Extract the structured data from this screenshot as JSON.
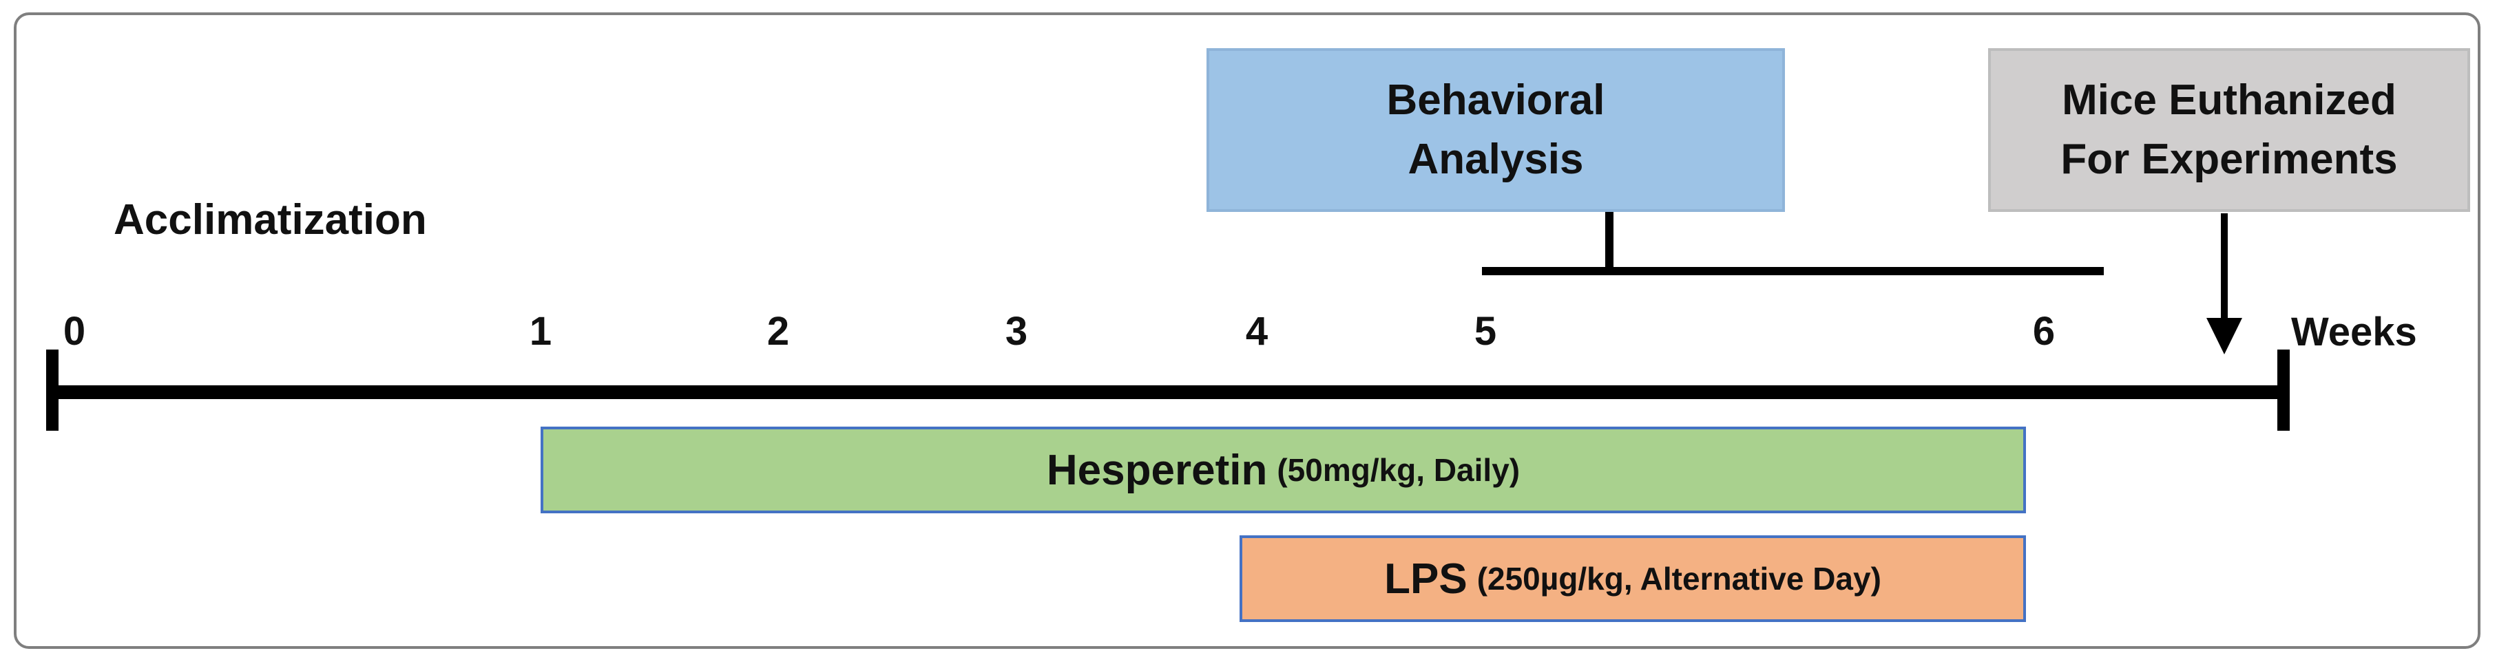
{
  "behavioral_box": {
    "line1": "Behavioral",
    "line2": "Analysis"
  },
  "euthanized_box": {
    "line1": "Mice Euthanized",
    "line2": "For Experiments"
  },
  "acclimatization_label": "Acclimatization",
  "axis": {
    "unit_label": "Weeks",
    "ticks": [
      {
        "label": "0",
        "week": 0
      },
      {
        "label": "1",
        "week": 1
      },
      {
        "label": "2",
        "week": 2
      },
      {
        "label": "3",
        "week": 3
      },
      {
        "label": "4",
        "week": 4
      },
      {
        "label": "5",
        "week": 5
      },
      {
        "label": "6",
        "week": 6
      }
    ]
  },
  "hesperetin_bar": {
    "name": "Hesperetin",
    "detail": "(50mg/kg, Daily)"
  },
  "lps_bar": {
    "name": "LPS",
    "detail": "(250µg/kg, Alternative Day)"
  },
  "colors": {
    "behavioral": "#9dc3e6",
    "euthanized": "#d0cece",
    "hesperetin": "#a9d18e",
    "lps": "#f4b183",
    "bar_border": "#4472c4"
  }
}
